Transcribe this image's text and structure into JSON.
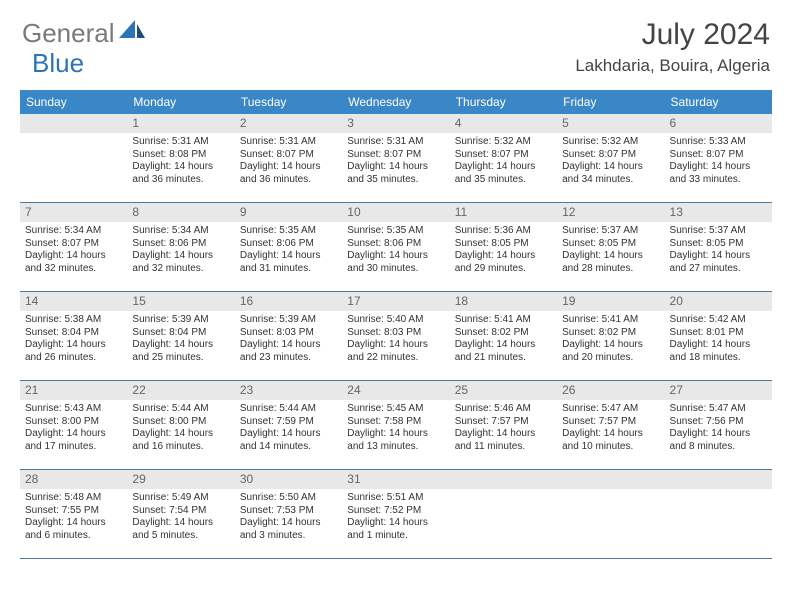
{
  "logo": {
    "text1": "General",
    "text2": "Blue",
    "color_gray": "#7a7a7a",
    "color_blue": "#2d73b5"
  },
  "title": "July 2024",
  "location": "Lakhdaria, Bouira, Algeria",
  "header_bg": "#3a87c8",
  "daynum_bg": "#e8e8e8",
  "week_border": "#4a79a5",
  "day_headers": [
    "Sunday",
    "Monday",
    "Tuesday",
    "Wednesday",
    "Thursday",
    "Friday",
    "Saturday"
  ],
  "weeks": [
    [
      {
        "n": "",
        "lines": []
      },
      {
        "n": "1",
        "lines": [
          "Sunrise: 5:31 AM",
          "Sunset: 8:08 PM",
          "Daylight: 14 hours and 36 minutes."
        ]
      },
      {
        "n": "2",
        "lines": [
          "Sunrise: 5:31 AM",
          "Sunset: 8:07 PM",
          "Daylight: 14 hours and 36 minutes."
        ]
      },
      {
        "n": "3",
        "lines": [
          "Sunrise: 5:31 AM",
          "Sunset: 8:07 PM",
          "Daylight: 14 hours and 35 minutes."
        ]
      },
      {
        "n": "4",
        "lines": [
          "Sunrise: 5:32 AM",
          "Sunset: 8:07 PM",
          "Daylight: 14 hours and 35 minutes."
        ]
      },
      {
        "n": "5",
        "lines": [
          "Sunrise: 5:32 AM",
          "Sunset: 8:07 PM",
          "Daylight: 14 hours and 34 minutes."
        ]
      },
      {
        "n": "6",
        "lines": [
          "Sunrise: 5:33 AM",
          "Sunset: 8:07 PM",
          "Daylight: 14 hours and 33 minutes."
        ]
      }
    ],
    [
      {
        "n": "7",
        "lines": [
          "Sunrise: 5:34 AM",
          "Sunset: 8:07 PM",
          "Daylight: 14 hours and 32 minutes."
        ]
      },
      {
        "n": "8",
        "lines": [
          "Sunrise: 5:34 AM",
          "Sunset: 8:06 PM",
          "Daylight: 14 hours and 32 minutes."
        ]
      },
      {
        "n": "9",
        "lines": [
          "Sunrise: 5:35 AM",
          "Sunset: 8:06 PM",
          "Daylight: 14 hours and 31 minutes."
        ]
      },
      {
        "n": "10",
        "lines": [
          "Sunrise: 5:35 AM",
          "Sunset: 8:06 PM",
          "Daylight: 14 hours and 30 minutes."
        ]
      },
      {
        "n": "11",
        "lines": [
          "Sunrise: 5:36 AM",
          "Sunset: 8:05 PM",
          "Daylight: 14 hours and 29 minutes."
        ]
      },
      {
        "n": "12",
        "lines": [
          "Sunrise: 5:37 AM",
          "Sunset: 8:05 PM",
          "Daylight: 14 hours and 28 minutes."
        ]
      },
      {
        "n": "13",
        "lines": [
          "Sunrise: 5:37 AM",
          "Sunset: 8:05 PM",
          "Daylight: 14 hours and 27 minutes."
        ]
      }
    ],
    [
      {
        "n": "14",
        "lines": [
          "Sunrise: 5:38 AM",
          "Sunset: 8:04 PM",
          "Daylight: 14 hours and 26 minutes."
        ]
      },
      {
        "n": "15",
        "lines": [
          "Sunrise: 5:39 AM",
          "Sunset: 8:04 PM",
          "Daylight: 14 hours and 25 minutes."
        ]
      },
      {
        "n": "16",
        "lines": [
          "Sunrise: 5:39 AM",
          "Sunset: 8:03 PM",
          "Daylight: 14 hours and 23 minutes."
        ]
      },
      {
        "n": "17",
        "lines": [
          "Sunrise: 5:40 AM",
          "Sunset: 8:03 PM",
          "Daylight: 14 hours and 22 minutes."
        ]
      },
      {
        "n": "18",
        "lines": [
          "Sunrise: 5:41 AM",
          "Sunset: 8:02 PM",
          "Daylight: 14 hours and 21 minutes."
        ]
      },
      {
        "n": "19",
        "lines": [
          "Sunrise: 5:41 AM",
          "Sunset: 8:02 PM",
          "Daylight: 14 hours and 20 minutes."
        ]
      },
      {
        "n": "20",
        "lines": [
          "Sunrise: 5:42 AM",
          "Sunset: 8:01 PM",
          "Daylight: 14 hours and 18 minutes."
        ]
      }
    ],
    [
      {
        "n": "21",
        "lines": [
          "Sunrise: 5:43 AM",
          "Sunset: 8:00 PM",
          "Daylight: 14 hours and 17 minutes."
        ]
      },
      {
        "n": "22",
        "lines": [
          "Sunrise: 5:44 AM",
          "Sunset: 8:00 PM",
          "Daylight: 14 hours and 16 minutes."
        ]
      },
      {
        "n": "23",
        "lines": [
          "Sunrise: 5:44 AM",
          "Sunset: 7:59 PM",
          "Daylight: 14 hours and 14 minutes."
        ]
      },
      {
        "n": "24",
        "lines": [
          "Sunrise: 5:45 AM",
          "Sunset: 7:58 PM",
          "Daylight: 14 hours and 13 minutes."
        ]
      },
      {
        "n": "25",
        "lines": [
          "Sunrise: 5:46 AM",
          "Sunset: 7:57 PM",
          "Daylight: 14 hours and 11 minutes."
        ]
      },
      {
        "n": "26",
        "lines": [
          "Sunrise: 5:47 AM",
          "Sunset: 7:57 PM",
          "Daylight: 14 hours and 10 minutes."
        ]
      },
      {
        "n": "27",
        "lines": [
          "Sunrise: 5:47 AM",
          "Sunset: 7:56 PM",
          "Daylight: 14 hours and 8 minutes."
        ]
      }
    ],
    [
      {
        "n": "28",
        "lines": [
          "Sunrise: 5:48 AM",
          "Sunset: 7:55 PM",
          "Daylight: 14 hours and 6 minutes."
        ]
      },
      {
        "n": "29",
        "lines": [
          "Sunrise: 5:49 AM",
          "Sunset: 7:54 PM",
          "Daylight: 14 hours and 5 minutes."
        ]
      },
      {
        "n": "30",
        "lines": [
          "Sunrise: 5:50 AM",
          "Sunset: 7:53 PM",
          "Daylight: 14 hours and 3 minutes."
        ]
      },
      {
        "n": "31",
        "lines": [
          "Sunrise: 5:51 AM",
          "Sunset: 7:52 PM",
          "Daylight: 14 hours and 1 minute."
        ]
      },
      {
        "n": "",
        "lines": []
      },
      {
        "n": "",
        "lines": []
      },
      {
        "n": "",
        "lines": []
      }
    ]
  ]
}
